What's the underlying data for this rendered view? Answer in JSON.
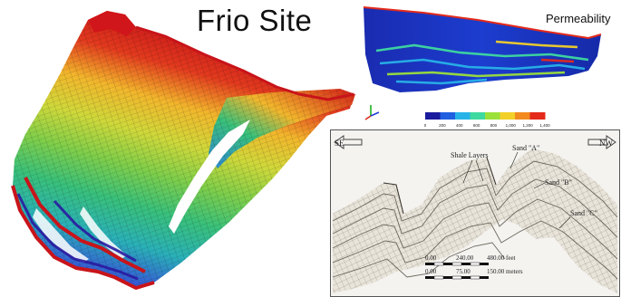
{
  "title": "Frio Site",
  "permeability_panel": {
    "title": "Permeability",
    "colorbar_ticks": [
      "0",
      "200",
      "400",
      "600",
      "800",
      "1,000",
      "1,200",
      "1,400"
    ],
    "colorbar_colors": [
      "#1a1a9e",
      "#1f5fe0",
      "#27b3e8",
      "#3ed9a0",
      "#9ce03a",
      "#f2d028",
      "#f28a1e",
      "#e42a1a"
    ],
    "axis_triad_icon": "xyz-axes-icon"
  },
  "cross_section": {
    "direction_left": "SE",
    "direction_right": "NW",
    "labels": {
      "shale": "Shale Layers",
      "sand_a": "Sand \"A\"",
      "sand_b": "Sand \"B\"",
      "sand_c": "Sand \"C\""
    },
    "scale_feet": [
      "0.00",
      "240.00",
      "480.00 feet"
    ],
    "scale_meters": [
      "0.00",
      "75.00",
      "150.00 meters"
    ]
  },
  "model_colors": [
    "#c8141a",
    "#e23a1e",
    "#ef7a24",
    "#f2b62c",
    "#cfd83a",
    "#7fce4a",
    "#39c07a",
    "#2ab0b8",
    "#2f86d8",
    "#3656d6",
    "#3a2ec0",
    "#2a1aa0"
  ]
}
